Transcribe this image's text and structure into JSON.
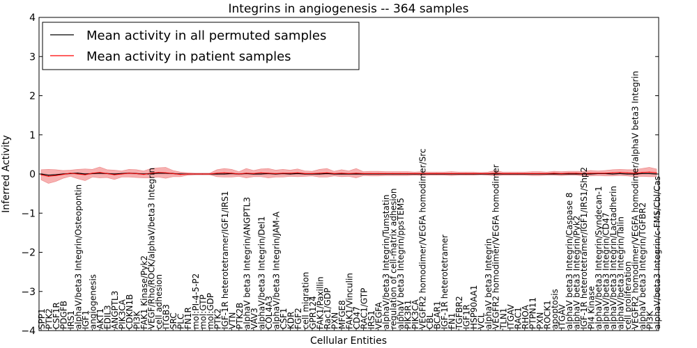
{
  "chart_data": {
    "type": "line",
    "title": "Integrins in angiogenesis -- 364 samples",
    "xlabel": "Cellular Entities",
    "ylabel": "Inferred Activity",
    "ylim": [
      -4,
      4
    ],
    "yticks": [
      -4,
      -3,
      -2,
      -1,
      0,
      1,
      2,
      3,
      4
    ],
    "ytick_labels": [
      "−4",
      "−3",
      "−2",
      "−1",
      "0",
      "1",
      "2",
      "3",
      "4"
    ],
    "legend_position": "top-left",
    "categories": [
      "SPP1",
      "PTK2",
      "CSF1R",
      "PDGFB",
      "IRS1",
      "alphaV/beta3 Integrin/Osteopontin",
      "IGF1",
      "angiogenesis",
      "AKT1",
      "EDIL3",
      "ANGPTL3",
      "PIK3CA",
      "CDKN1B",
      "PI3K",
      "FAK1 Kinase/Pyk2",
      "VEGF/Rho/ROCK/alphaV/beta3 Integrin",
      "cell adhesion",
      "ITGB3",
      "SRC",
      "PLC",
      "FN1R",
      "mol:PI-4-5-P2",
      "mol:GTP",
      "mol:GDP",
      "PTK2",
      "IGF-1R heterotetramer/IGF1/IRS1",
      "VTN",
      "PTK2B",
      "alphaV beta3 Integrin/ANGPTL3",
      "VAV3",
      "alphaV/beta3 Integrin/Del1",
      "COL4A3",
      "alphaV/beta3 Integrin/JAM-A",
      "CSF1",
      "KDR",
      "FGF2",
      "cell migration",
      "GPR124",
      "FAK1/Paxillin",
      "Rac1/GDP",
      "PXN",
      "MFGE8",
      "FAK1/Vinculin",
      "CD47",
      "RAC1/GTP",
      "IRS1",
      "VEGFA",
      "alphaV/beta3 Integrin/Tumstatin",
      "regulation of cell-matrix adhesion",
      "alphaV beta3 Integrin/ppsTEM5",
      "PIK3R1",
      "PIK3CA",
      "VEGFR2 homodimer/VEGFA homodimer/Src",
      "CBL",
      "BCAR1",
      "IGF-1R heterotetramer",
      "FN1",
      "TGFBR2",
      "IGF1R",
      "HSP90AA1",
      "VCL",
      "alphaV beta3 Integrin",
      "VEGFR2 homodimer/VEGFA homodimer",
      "TLN1",
      "ITGAV",
      "RAC1",
      "RHOA",
      "PTPN11",
      "PXN",
      "ROCK1",
      "apoptosis",
      "ITGAV",
      "alphaV beta3 Integrin/Caspase 8",
      "alphaV beta3 Integrin/Pyk2",
      "IGF-1R heterotetramer/IGF1/IRS1/Shp2",
      "PI4 Kinase",
      "alphaV/beta3 Integrin/Syndecan-1",
      "alphaV/beta3 Integrin/CD47",
      "alphaV/beta3 Integrin/Lactadherin",
      "alphaV/beta3 Integrin/Talin",
      "cell proliferation",
      "VEGFR2 homodimer/VEGFA homodimer/alphaV beta3 Integrin",
      "alphaV beta3 Integrin/TGFBR2",
      "PI3K",
      "alphaV/beta3 Integrin/c-FMS/Cbl/Cas"
    ],
    "series": [
      {
        "name": "Mean activity in all permuted samples",
        "color": "#000000",
        "values": [
          0.0,
          -0.03,
          -0.02,
          0.0,
          0.01,
          0.02,
          0.0,
          0.01,
          0.02,
          0.01,
          0.0,
          0.01,
          0.02,
          0.01,
          0.0,
          0.01,
          0.02,
          0.02,
          0.01,
          0.0,
          0.0,
          0.0,
          0.0,
          0.0,
          0.0,
          0.0,
          0.01,
          0.0,
          0.01,
          0.0,
          0.0,
          0.01,
          0.0,
          0.01,
          0.0,
          0.01,
          0.0,
          0.0,
          0.0,
          0.01,
          0.0,
          0.0,
          0.0,
          0.0,
          0.0,
          0.0,
          0.0,
          0.0,
          0.0,
          0.0,
          0.0,
          0.0,
          0.0,
          0.0,
          0.0,
          0.0,
          0.0,
          0.0,
          0.0,
          0.0,
          0.0,
          0.0,
          0.0,
          0.0,
          0.0,
          0.0,
          0.0,
          0.0,
          0.0,
          0.0,
          0.0,
          0.0,
          0.0,
          0.0,
          0.0,
          0.0,
          0.01,
          0.01,
          0.0,
          0.01,
          0.0,
          0.0,
          0.01,
          0.01,
          0.0
        ]
      },
      {
        "name": "Mean activity in patient samples",
        "color": "#ff0000",
        "band_color": "#f07070",
        "values": [
          -0.02,
          -0.06,
          -0.04,
          -0.01,
          0.02,
          0.0,
          -0.02,
          0.02,
          0.04,
          0.01,
          -0.02,
          0.0,
          0.02,
          0.01,
          -0.01,
          0.02,
          0.04,
          0.03,
          0.01,
          -0.01,
          0.0,
          0.0,
          0.0,
          0.0,
          0.02,
          0.03,
          0.02,
          0.0,
          0.02,
          0.01,
          0.03,
          0.02,
          0.01,
          0.02,
          0.02,
          0.03,
          0.01,
          0.01,
          0.02,
          0.03,
          0.01,
          0.02,
          0.01,
          0.02,
          0.01,
          0.01,
          0.01,
          0.01,
          0.01,
          0.01,
          0.01,
          0.01,
          0.01,
          0.01,
          0.01,
          0.01,
          0.01,
          0.01,
          0.01,
          0.01,
          0.01,
          0.01,
          0.02,
          0.01,
          0.01,
          0.01,
          0.01,
          0.01,
          0.01,
          0.01,
          0.02,
          0.01,
          0.02,
          0.02,
          0.01,
          0.02,
          0.02,
          0.02,
          0.03,
          0.04,
          0.03,
          0.02,
          0.04,
          0.05,
          0.03
        ],
        "spread": [
          0.13,
          0.18,
          0.15,
          0.1,
          0.08,
          0.12,
          0.15,
          0.1,
          0.14,
          0.1,
          0.12,
          0.08,
          0.1,
          0.1,
          0.09,
          0.12,
          0.12,
          0.14,
          0.08,
          0.06,
          0.03,
          0.02,
          0.02,
          0.02,
          0.09,
          0.11,
          0.1,
          0.06,
          0.12,
          0.08,
          0.1,
          0.12,
          0.09,
          0.1,
          0.08,
          0.1,
          0.07,
          0.06,
          0.1,
          0.11,
          0.06,
          0.09,
          0.07,
          0.12,
          0.05,
          0.06,
          0.06,
          0.05,
          0.05,
          0.05,
          0.05,
          0.04,
          0.05,
          0.04,
          0.04,
          0.04,
          0.05,
          0.04,
          0.04,
          0.04,
          0.03,
          0.04,
          0.07,
          0.04,
          0.04,
          0.04,
          0.04,
          0.05,
          0.05,
          0.04,
          0.05,
          0.05,
          0.05,
          0.05,
          0.06,
          0.07,
          0.06,
          0.07,
          0.08,
          0.08,
          0.08,
          0.09,
          0.1,
          0.12,
          0.1
        ]
      }
    ]
  }
}
